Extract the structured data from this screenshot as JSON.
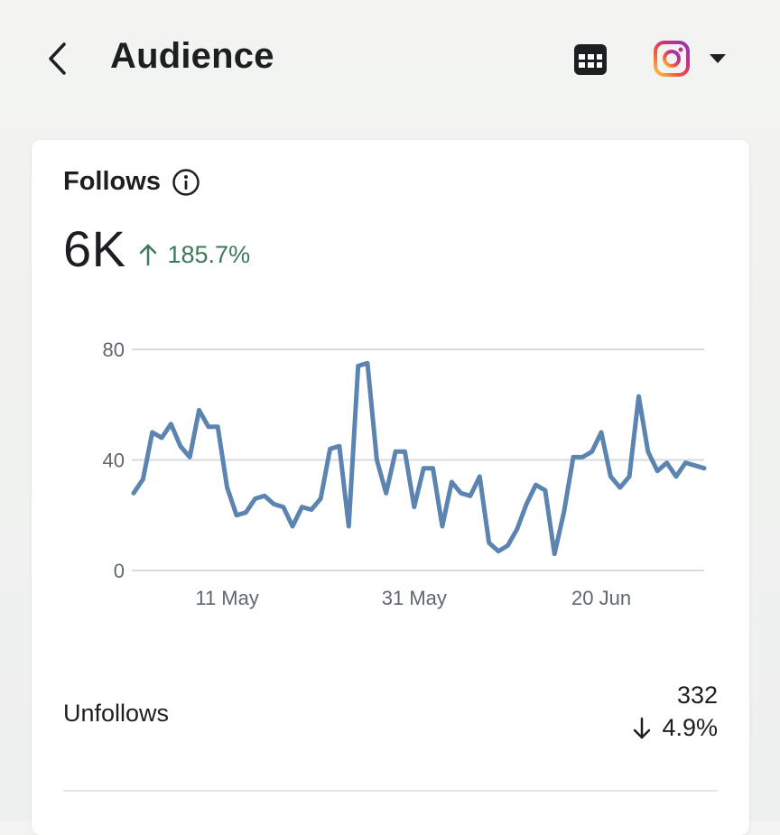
{
  "header": {
    "title": "Audience",
    "back_icon": "chevron-left-icon",
    "table_icon": "table-icon",
    "account_icon": "instagram-icon",
    "dropdown_icon": "caret-down-icon"
  },
  "colors": {
    "accent_line": "#5b84b1",
    "positive": "#3e7a57",
    "gridline": "#d7dadf",
    "axis_text": "#606770"
  },
  "follows": {
    "title": "Follows",
    "info_icon": "info-icon",
    "value": "6K",
    "change": "185.7%",
    "change_direction": "up"
  },
  "chart_data": {
    "type": "line",
    "x": [
      "01 May",
      "02 May",
      "03 May",
      "04 May",
      "05 May",
      "06 May",
      "07 May",
      "08 May",
      "09 May",
      "10 May",
      "11 May",
      "12 May",
      "13 May",
      "14 May",
      "15 May",
      "16 May",
      "17 May",
      "18 May",
      "19 May",
      "20 May",
      "21 May",
      "22 May",
      "23 May",
      "24 May",
      "25 May",
      "26 May",
      "27 May",
      "28 May",
      "29 May",
      "30 May",
      "31 May",
      "01 Jun",
      "02 Jun",
      "03 Jun",
      "04 Jun",
      "05 Jun",
      "06 Jun",
      "07 Jun",
      "08 Jun",
      "09 Jun",
      "10 Jun",
      "11 Jun",
      "12 Jun",
      "13 Jun",
      "14 Jun",
      "15 Jun",
      "16 Jun",
      "17 Jun",
      "18 Jun",
      "19 Jun",
      "20 Jun",
      "21 Jun",
      "22 Jun",
      "23 Jun",
      "24 Jun",
      "25 Jun",
      "26 Jun",
      "27 Jun",
      "28 Jun",
      "29 Jun",
      "30 Jun",
      "01 Jul"
    ],
    "series": [
      {
        "values": [
          28,
          33,
          50,
          48,
          53,
          45,
          41,
          58,
          52,
          52,
          30,
          20,
          21,
          26,
          27,
          24,
          23,
          16,
          23,
          22,
          26,
          44,
          45,
          16,
          74,
          75,
          40,
          28,
          43,
          43,
          23,
          37,
          37,
          16,
          32,
          28,
          27,
          34,
          10,
          7,
          9,
          15,
          24,
          31,
          29,
          6,
          21,
          41,
          41,
          43,
          50,
          34,
          30,
          34,
          63,
          43,
          36,
          39,
          34,
          39,
          38,
          37
        ]
      }
    ],
    "x_ticks": [
      "11 May",
      "31 May",
      "20 Jun"
    ],
    "y_ticks": [
      0,
      40,
      80
    ],
    "ylim": [
      0,
      80
    ],
    "grid": true
  },
  "unfollows": {
    "label": "Unfollows",
    "value": "332",
    "change": "4.9%",
    "change_direction": "down"
  }
}
